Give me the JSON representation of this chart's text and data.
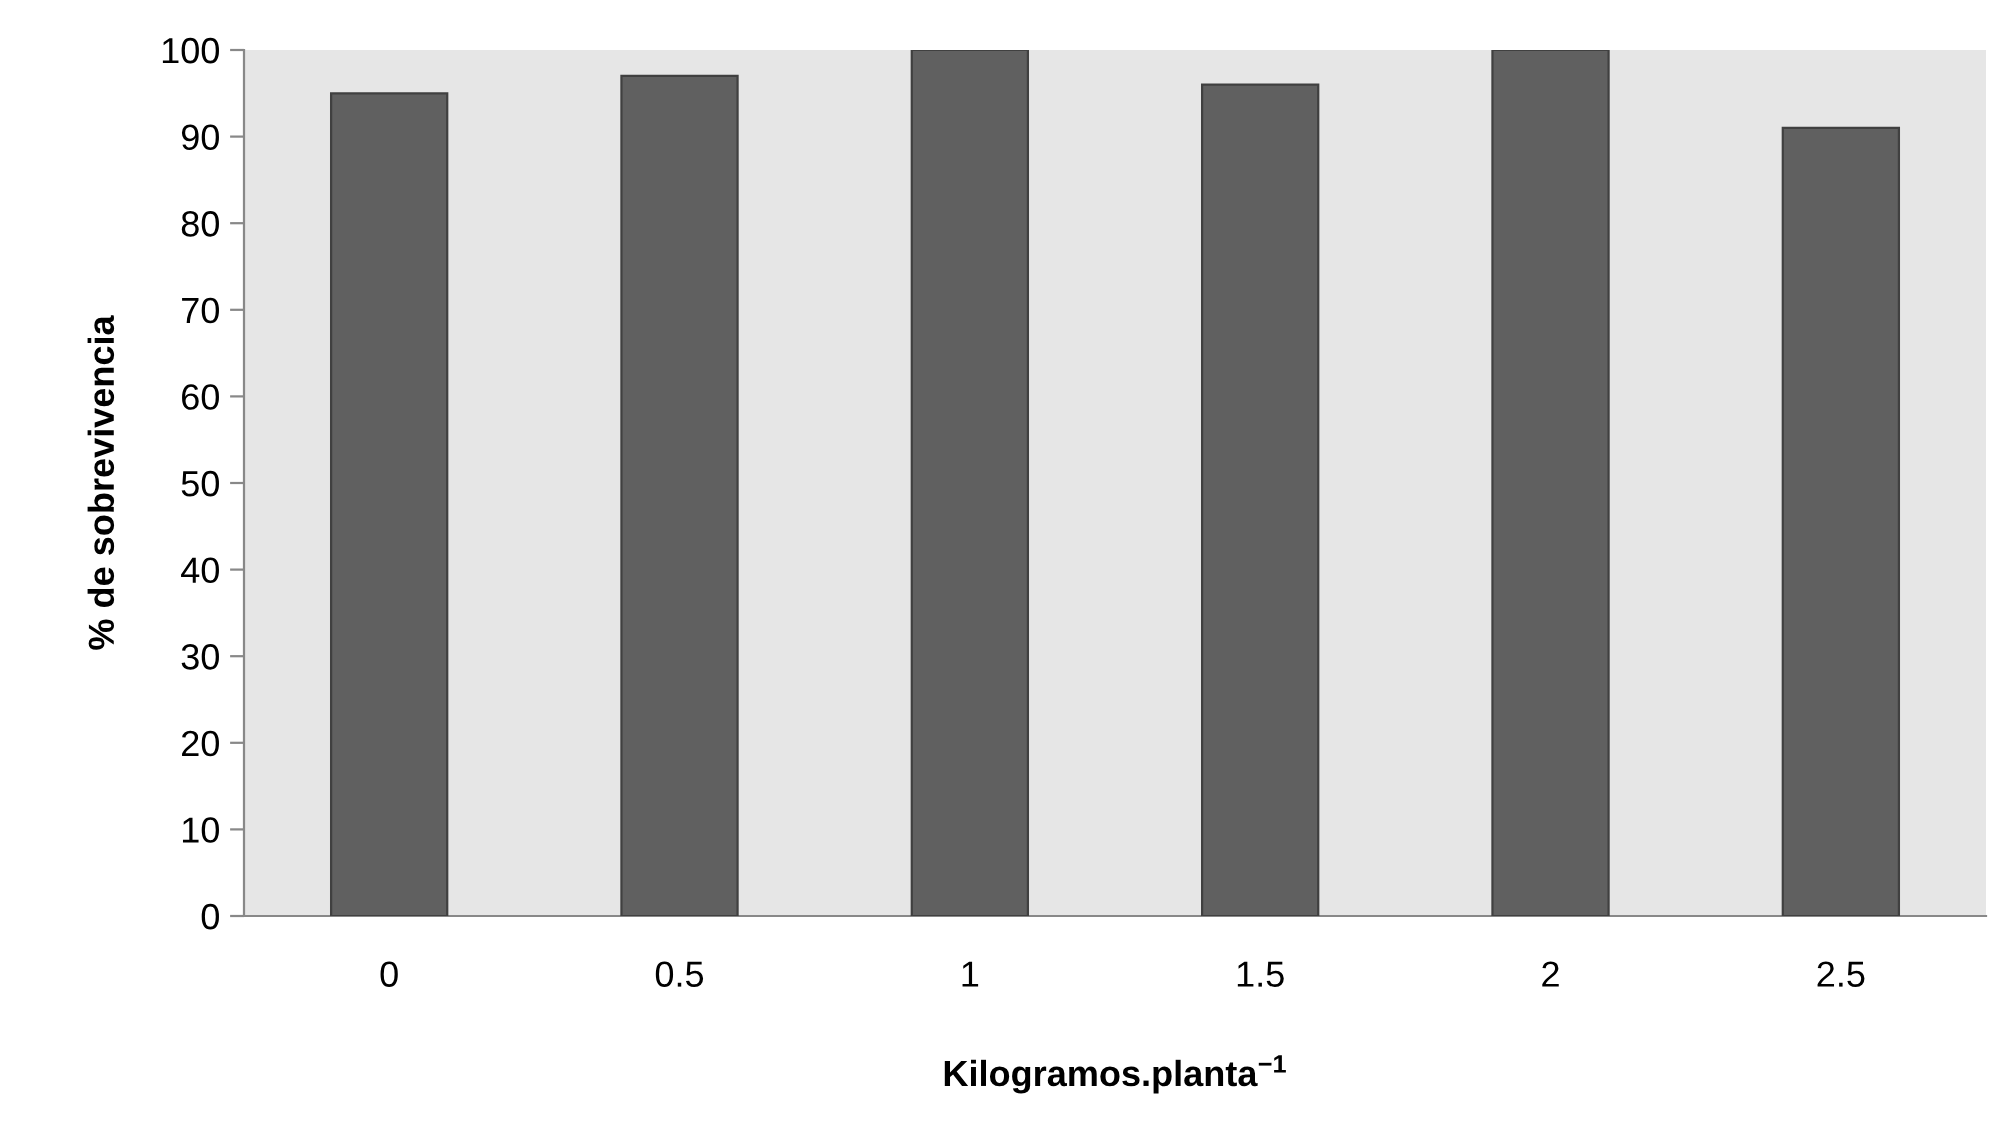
{
  "chart_data": {
    "type": "bar",
    "xlabel": "Kilogramos.planta$^{−1}$",
    "ylabel": "% de sobrevivencia",
    "categories": [
      "0",
      "0.5",
      "1",
      "1.5",
      "2",
      "2.5"
    ],
    "values": [
      95,
      97,
      100,
      96,
      100,
      91
    ],
    "color": "#606060",
    "ylim": [
      0,
      100
    ],
    "yticks": [
      0,
      10,
      20,
      30,
      40,
      50,
      60,
      70,
      80,
      90,
      100
    ],
    "grid": false,
    "legend": false
  }
}
